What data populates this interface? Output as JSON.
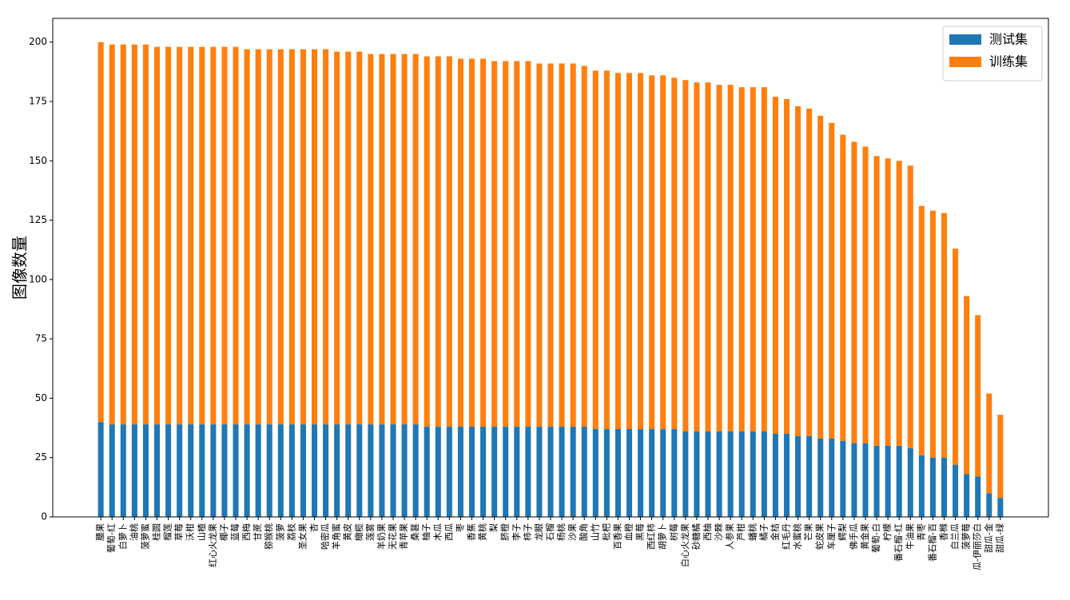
{
  "chart_data": {
    "type": "bar",
    "stacked": true,
    "ylabel": "图像数量",
    "categories": [
      "腰果",
      "葡萄-红",
      "白萝卜",
      "油桃",
      "菠萝蜜",
      "桂圆",
      "榴莲",
      "草莓",
      "沃柑",
      "山楂",
      "红心火龙果",
      "椰子",
      "蓝莓",
      "西梅",
      "甘蔗",
      "猕猴桃",
      "菠萝",
      "荔枝",
      "圣女果",
      "杏",
      "哈密瓜",
      "羊角蜜",
      "黄皮",
      "橄榄",
      "莲雾",
      "羊奶果",
      "无花果",
      "青苹果",
      "桑葚",
      "柚子",
      "木瓜",
      "西瓜",
      "枣",
      "香蕉",
      "黄桃",
      "梨",
      "脐橙",
      "李子",
      "柿子",
      "龙眼",
      "石榴",
      "杨桃",
      "沙果",
      "酸角",
      "山竹",
      "枇杷",
      "百香果",
      "血橙",
      "黑莓",
      "西红柿",
      "胡萝卜",
      "树莓",
      "白心火龙果",
      "砂糖橘",
      "西柚",
      "沙棘",
      "人参果",
      "芦柑",
      "蟠桃",
      "橘子",
      "金桔",
      "红毛丹",
      "水蜜桃",
      "芒果",
      "蛇皮果",
      "车厘子",
      "鳄梨",
      "佛手瓜",
      "黄金果",
      "葡萄-白",
      "柠檬",
      "番石榴-红",
      "牛油果",
      "青枣",
      "番石榴-百",
      "香橼",
      "白兰瓜",
      "菠萝莓",
      "瓜-伊丽莎白",
      "甜瓜-金",
      "甜瓜-绿"
    ],
    "series": [
      {
        "name": "测试集",
        "color": "#1f77b4",
        "values": [
          40,
          39,
          39,
          39,
          39,
          39,
          39,
          39,
          39,
          39,
          39,
          39,
          39,
          39,
          39,
          39,
          39,
          39,
          39,
          39,
          39,
          39,
          39,
          39,
          39,
          39,
          39,
          39,
          39,
          38,
          38,
          38,
          38,
          38,
          38,
          38,
          38,
          38,
          38,
          38,
          38,
          38,
          38,
          38,
          37,
          37,
          37,
          37,
          37,
          37,
          37,
          37,
          36,
          36,
          36,
          36,
          36,
          36,
          36,
          36,
          35,
          35,
          34,
          34,
          33,
          33,
          32,
          31,
          31,
          30,
          30,
          30,
          29,
          26,
          25,
          25,
          22,
          18,
          17,
          10,
          8
        ]
      },
      {
        "name": "训练集",
        "color": "#ff7f0e",
        "values": [
          160,
          160,
          160,
          160,
          160,
          159,
          159,
          159,
          159,
          159,
          159,
          159,
          159,
          158,
          158,
          158,
          158,
          158,
          158,
          158,
          158,
          157,
          157,
          157,
          156,
          156,
          156,
          156,
          156,
          156,
          156,
          156,
          155,
          155,
          155,
          154,
          154,
          154,
          154,
          153,
          153,
          153,
          153,
          152,
          151,
          151,
          150,
          150,
          150,
          149,
          149,
          148,
          148,
          147,
          147,
          146,
          146,
          145,
          145,
          145,
          142,
          141,
          139,
          138,
          136,
          133,
          129,
          127,
          125,
          122,
          121,
          120,
          119,
          105,
          104,
          103,
          91,
          75,
          68,
          42,
          35
        ]
      }
    ],
    "ylim": [
      0,
      210
    ],
    "yticks": [
      0,
      25,
      50,
      75,
      100,
      125,
      150,
      175,
      200
    ],
    "grid": false,
    "legend": "upper right"
  }
}
